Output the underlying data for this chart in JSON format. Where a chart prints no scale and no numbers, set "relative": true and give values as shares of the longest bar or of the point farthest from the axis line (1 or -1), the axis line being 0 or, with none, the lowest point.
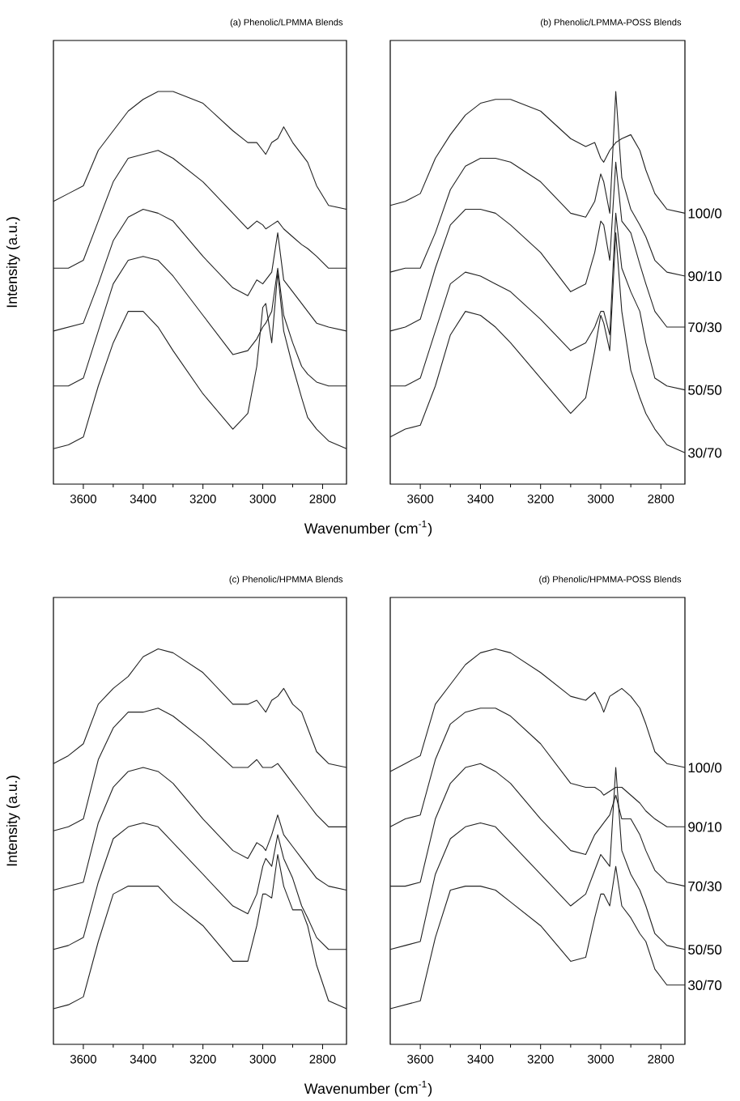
{
  "chart_data": [
    {
      "type": "line",
      "title": "(a) Phenolic/LPMMA Blends",
      "xlabel": "Wavenumber (cm$^{-1}$)",
      "ylabel": "Intensity (a.u.)",
      "relative": true,
      "tick_labels": "x",
      "xlim": [
        3700,
        2720
      ],
      "xticks": [
        3600,
        3400,
        3200,
        3000,
        2800
      ],
      "x": [
        3700,
        3650,
        3600,
        3550,
        3500,
        3450,
        3400,
        3350,
        3300,
        3200,
        3100,
        3050,
        3020,
        3000,
        2990,
        2970,
        2950,
        2930,
        2900,
        2870,
        2850,
        2820,
        2780,
        2720
      ],
      "series": [
        {
          "color": "#222222",
          "values": [
            0.72,
            0.74,
            0.76,
            0.85,
            0.9,
            0.95,
            0.98,
            1.0,
            1.0,
            0.97,
            0.9,
            0.87,
            0.87,
            0.85,
            0.84,
            0.87,
            0.88,
            0.91,
            0.87,
            0.84,
            0.82,
            0.76,
            0.71,
            0.7
          ]
        },
        {
          "color": "#222222",
          "values": [
            0.55,
            0.55,
            0.57,
            0.67,
            0.77,
            0.83,
            0.84,
            0.85,
            0.83,
            0.77,
            0.69,
            0.65,
            0.67,
            0.66,
            0.65,
            0.66,
            0.67,
            0.65,
            0.63,
            0.61,
            0.6,
            0.58,
            0.55,
            0.55
          ]
        },
        {
          "color": "#222222",
          "values": [
            0.39,
            0.4,
            0.41,
            0.51,
            0.62,
            0.68,
            0.7,
            0.69,
            0.67,
            0.58,
            0.5,
            0.48,
            0.52,
            0.51,
            0.52,
            0.54,
            0.64,
            0.52,
            0.49,
            0.46,
            0.44,
            0.41,
            0.4,
            0.39
          ]
        },
        {
          "color": "#222222",
          "values": [
            0.25,
            0.25,
            0.27,
            0.39,
            0.51,
            0.57,
            0.58,
            0.57,
            0.53,
            0.43,
            0.33,
            0.34,
            0.37,
            0.4,
            0.41,
            0.44,
            0.55,
            0.43,
            0.36,
            0.3,
            0.28,
            0.26,
            0.25,
            0.25
          ]
        },
        {
          "color": "#222222",
          "values": [
            0.09,
            0.1,
            0.12,
            0.25,
            0.36,
            0.44,
            0.44,
            0.4,
            0.34,
            0.23,
            0.14,
            0.18,
            0.3,
            0.45,
            0.46,
            0.36,
            0.54,
            0.39,
            0.3,
            0.22,
            0.17,
            0.14,
            0.11,
            0.09
          ]
        }
      ]
    },
    {
      "type": "line",
      "title": "(b) Phenolic/LPMMA-POSS Blends",
      "relative": true,
      "tick_labels": "x",
      "xlim": [
        3700,
        2720
      ],
      "xticks": [
        3600,
        3400,
        3200,
        3000,
        2800
      ],
      "x": [
        3700,
        3650,
        3600,
        3550,
        3500,
        3450,
        3400,
        3350,
        3300,
        3200,
        3100,
        3050,
        3020,
        3000,
        2990,
        2970,
        2950,
        2930,
        2900,
        2870,
        2850,
        2820,
        2780,
        2720
      ],
      "series": [
        {
          "name": "100/0",
          "color": "#222222",
          "values": [
            0.71,
            0.72,
            0.74,
            0.83,
            0.89,
            0.94,
            0.97,
            0.98,
            0.98,
            0.95,
            0.88,
            0.86,
            0.87,
            0.83,
            0.82,
            0.85,
            0.87,
            0.88,
            0.89,
            0.85,
            0.8,
            0.74,
            0.7,
            0.69
          ]
        },
        {
          "name": "90/10",
          "color": "#222222",
          "values": [
            0.54,
            0.55,
            0.55,
            0.64,
            0.75,
            0.81,
            0.83,
            0.83,
            0.82,
            0.77,
            0.69,
            0.68,
            0.72,
            0.79,
            0.77,
            0.69,
            1.0,
            0.78,
            0.7,
            0.66,
            0.63,
            0.57,
            0.54,
            0.53
          ]
        },
        {
          "name": "70/30",
          "color": "#222222",
          "values": [
            0.39,
            0.4,
            0.42,
            0.55,
            0.66,
            0.7,
            0.7,
            0.69,
            0.66,
            0.59,
            0.49,
            0.51,
            0.59,
            0.67,
            0.66,
            0.57,
            0.82,
            0.67,
            0.64,
            0.56,
            0.51,
            0.44,
            0.4,
            0.4
          ]
        },
        {
          "name": "50/50",
          "color": "#222222",
          "values": [
            0.25,
            0.25,
            0.27,
            0.39,
            0.51,
            0.54,
            0.53,
            0.51,
            0.49,
            0.42,
            0.34,
            0.36,
            0.4,
            0.44,
            0.44,
            0.38,
            0.69,
            0.55,
            0.49,
            0.44,
            0.36,
            0.27,
            0.25,
            0.24
          ]
        },
        {
          "name": "30/70",
          "color": "#222222",
          "values": [
            0.12,
            0.14,
            0.15,
            0.25,
            0.38,
            0.44,
            0.43,
            0.4,
            0.36,
            0.27,
            0.18,
            0.22,
            0.34,
            0.43,
            0.41,
            0.34,
            0.64,
            0.44,
            0.29,
            0.22,
            0.18,
            0.14,
            0.1,
            0.08
          ]
        }
      ]
    },
    {
      "type": "line",
      "title": "(c) Phenolic/HPMMA Blends",
      "xlabel": "Wavenumber (cm$^{-1}$)",
      "ylabel": "Intensity (a.u.)",
      "relative": true,
      "tick_labels": "x",
      "xlim": [
        3700,
        2720
      ],
      "xticks": [
        3600,
        3400,
        3200,
        3000,
        2800
      ],
      "x": [
        3700,
        3650,
        3600,
        3550,
        3500,
        3450,
        3400,
        3350,
        3300,
        3200,
        3100,
        3050,
        3020,
        3000,
        2990,
        2970,
        2950,
        2930,
        2900,
        2870,
        2850,
        2820,
        2780,
        2720
      ],
      "series": [
        {
          "color": "#222222",
          "values": [
            0.71,
            0.73,
            0.76,
            0.86,
            0.9,
            0.93,
            0.98,
            1.0,
            0.99,
            0.94,
            0.86,
            0.86,
            0.87,
            0.85,
            0.84,
            0.87,
            0.88,
            0.9,
            0.86,
            0.84,
            0.8,
            0.74,
            0.71,
            0.7
          ]
        },
        {
          "color": "#222222",
          "values": [
            0.54,
            0.55,
            0.57,
            0.72,
            0.8,
            0.84,
            0.84,
            0.85,
            0.83,
            0.77,
            0.7,
            0.7,
            0.72,
            0.7,
            0.7,
            0.7,
            0.71,
            0.69,
            0.66,
            0.63,
            0.61,
            0.58,
            0.55,
            0.55
          ]
        },
        {
          "color": "#222222",
          "values": [
            0.39,
            0.4,
            0.41,
            0.56,
            0.65,
            0.69,
            0.7,
            0.69,
            0.66,
            0.57,
            0.49,
            0.47,
            0.51,
            0.5,
            0.49,
            0.53,
            0.58,
            0.53,
            0.5,
            0.47,
            0.45,
            0.42,
            0.4,
            0.39
          ]
        },
        {
          "color": "#222222",
          "values": [
            0.24,
            0.25,
            0.27,
            0.41,
            0.52,
            0.55,
            0.56,
            0.55,
            0.51,
            0.43,
            0.35,
            0.33,
            0.38,
            0.45,
            0.47,
            0.45,
            0.53,
            0.47,
            0.42,
            0.35,
            0.32,
            0.27,
            0.24,
            0.24
          ]
        },
        {
          "color": "#222222",
          "values": [
            0.09,
            0.1,
            0.12,
            0.26,
            0.38,
            0.4,
            0.4,
            0.4,
            0.36,
            0.3,
            0.21,
            0.21,
            0.3,
            0.38,
            0.38,
            0.37,
            0.48,
            0.4,
            0.34,
            0.34,
            0.3,
            0.2,
            0.11,
            0.09
          ]
        }
      ]
    },
    {
      "type": "line",
      "title": "(d) Phenolic/HPMMA-POSS Blends",
      "relative": true,
      "tick_labels": "x",
      "xlim": [
        3700,
        2720
      ],
      "xticks": [
        3600,
        3400,
        3200,
        3000,
        2800
      ],
      "x": [
        3700,
        3650,
        3600,
        3550,
        3500,
        3450,
        3400,
        3350,
        3300,
        3200,
        3100,
        3050,
        3020,
        3000,
        2990,
        2970,
        2950,
        2930,
        2900,
        2870,
        2850,
        2820,
        2780,
        2720
      ],
      "series": [
        {
          "name": "100/0",
          "color": "#222222",
          "values": [
            0.69,
            0.71,
            0.73,
            0.86,
            0.91,
            0.96,
            0.99,
            1.0,
            0.99,
            0.94,
            0.88,
            0.87,
            0.89,
            0.86,
            0.84,
            0.88,
            0.89,
            0.9,
            0.88,
            0.85,
            0.81,
            0.74,
            0.71,
            0.7
          ]
        },
        {
          "name": "90/10",
          "color": "#222222",
          "values": [
            0.55,
            0.57,
            0.58,
            0.72,
            0.81,
            0.84,
            0.85,
            0.85,
            0.83,
            0.76,
            0.66,
            0.65,
            0.65,
            0.64,
            0.63,
            0.64,
            0.65,
            0.65,
            0.63,
            0.61,
            0.59,
            0.57,
            0.55,
            0.55
          ]
        },
        {
          "name": "70/30",
          "color": "#222222",
          "values": [
            0.4,
            0.4,
            0.41,
            0.57,
            0.66,
            0.7,
            0.71,
            0.69,
            0.66,
            0.57,
            0.49,
            0.48,
            0.53,
            0.55,
            0.56,
            0.58,
            0.63,
            0.57,
            0.57,
            0.53,
            0.49,
            0.44,
            0.41,
            0.4
          ]
        },
        {
          "name": "50/50",
          "color": "#222222",
          "values": [
            0.24,
            0.25,
            0.26,
            0.43,
            0.52,
            0.55,
            0.56,
            0.55,
            0.51,
            0.43,
            0.35,
            0.38,
            0.44,
            0.48,
            0.47,
            0.45,
            0.7,
            0.49,
            0.43,
            0.39,
            0.35,
            0.28,
            0.25,
            0.24
          ]
        },
        {
          "name": "30/70",
          "color": "#222222",
          "values": [
            0.09,
            0.1,
            0.11,
            0.27,
            0.39,
            0.4,
            0.4,
            0.39,
            0.36,
            0.3,
            0.21,
            0.22,
            0.32,
            0.38,
            0.38,
            0.35,
            0.45,
            0.35,
            0.32,
            0.28,
            0.26,
            0.19,
            0.15,
            0.15
          ]
        }
      ]
    }
  ]
}
